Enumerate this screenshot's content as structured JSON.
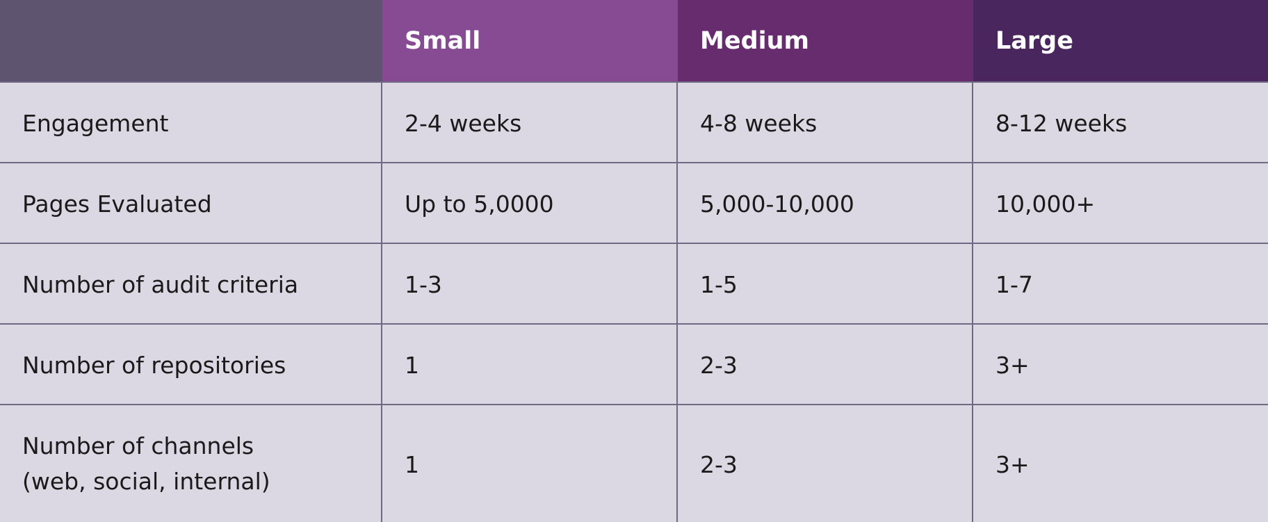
{
  "header": {
    "blank": "",
    "col1": "Small",
    "col2": "Medium",
    "col3": "Large"
  },
  "rows": [
    {
      "label": "Engagement",
      "small": "2-4 weeks",
      "medium": "4-8 weeks",
      "large": "8-12 weeks"
    },
    {
      "label": "Pages Evaluated",
      "small": "Up to 5,0000",
      "medium": "5,000-10,000",
      "large": "10,000+"
    },
    {
      "label": "Number of audit criteria",
      "small": "1-3",
      "medium": "1-5",
      "large": "1-7"
    },
    {
      "label": "Number of repositories",
      "small": "1",
      "medium": "2-3",
      "large": "3+"
    },
    {
      "label": "Number of channels\n(web, social, internal)",
      "small": "1",
      "medium": "2-3",
      "large": "3+"
    }
  ],
  "colors": {
    "header_blank": "#5e546f",
    "header_small": "#874b94",
    "header_medium": "#662c6e",
    "header_large": "#4a265f",
    "cell_bg": "#dbd7e3",
    "grid_line": "#6e6882"
  }
}
